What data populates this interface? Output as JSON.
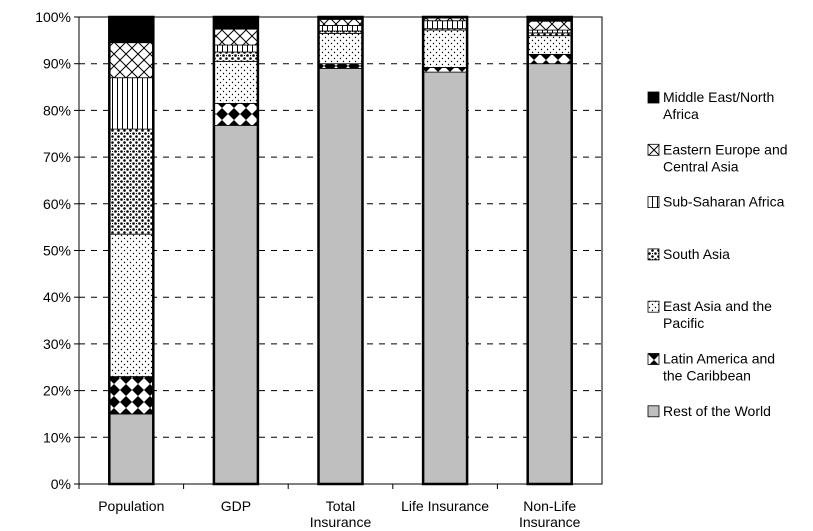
{
  "chart_data": {
    "type": "bar",
    "stacked": true,
    "title": "",
    "xlabel": "",
    "ylabel": "",
    "ylim": [
      0,
      100
    ],
    "y_ticks": [
      "0%",
      "10%",
      "20%",
      "30%",
      "40%",
      "50%",
      "60%",
      "70%",
      "80%",
      "90%",
      "100%"
    ],
    "grid": "horizontal dashed",
    "legend_position": "right",
    "categories": [
      [
        "Population"
      ],
      [
        "GDP"
      ],
      [
        "Total",
        "Insurance"
      ],
      [
        "Life Insurance"
      ],
      [
        "Non-Life",
        "Insurance"
      ]
    ],
    "series": [
      {
        "name": [
          "Rest of the World"
        ],
        "pattern": "gray",
        "values": [
          15,
          76.8,
          89,
          88.2,
          90
        ]
      },
      {
        "name": [
          "Latin America and",
          "the Caribbean"
        ],
        "pattern": "diamonds",
        "values": [
          8,
          4.7,
          1,
          1,
          2
        ]
      },
      {
        "name": [
          "East Asia and the",
          "Pacific"
        ],
        "pattern": "dots",
        "values": [
          30.5,
          9,
          6.5,
          8,
          4
        ]
      },
      {
        "name": [
          "South Asia"
        ],
        "pattern": "dense-dots",
        "values": [
          22.5,
          2,
          0.5,
          0.3,
          0.6
        ]
      },
      {
        "name": [
          "Sub-Saharan Africa"
        ],
        "pattern": "vertical-lines",
        "values": [
          11,
          1.5,
          1.2,
          1.7,
          0.6
        ]
      },
      {
        "name": [
          "Eastern Europe and",
          "Central Asia"
        ],
        "pattern": "crosshatch",
        "values": [
          7.5,
          3.4,
          1.3,
          0.6,
          1.9
        ]
      },
      {
        "name": [
          "Middle East/North",
          "Africa"
        ],
        "pattern": "black",
        "values": [
          5.5,
          2.6,
          0.5,
          0.2,
          0.9
        ]
      }
    ]
  }
}
